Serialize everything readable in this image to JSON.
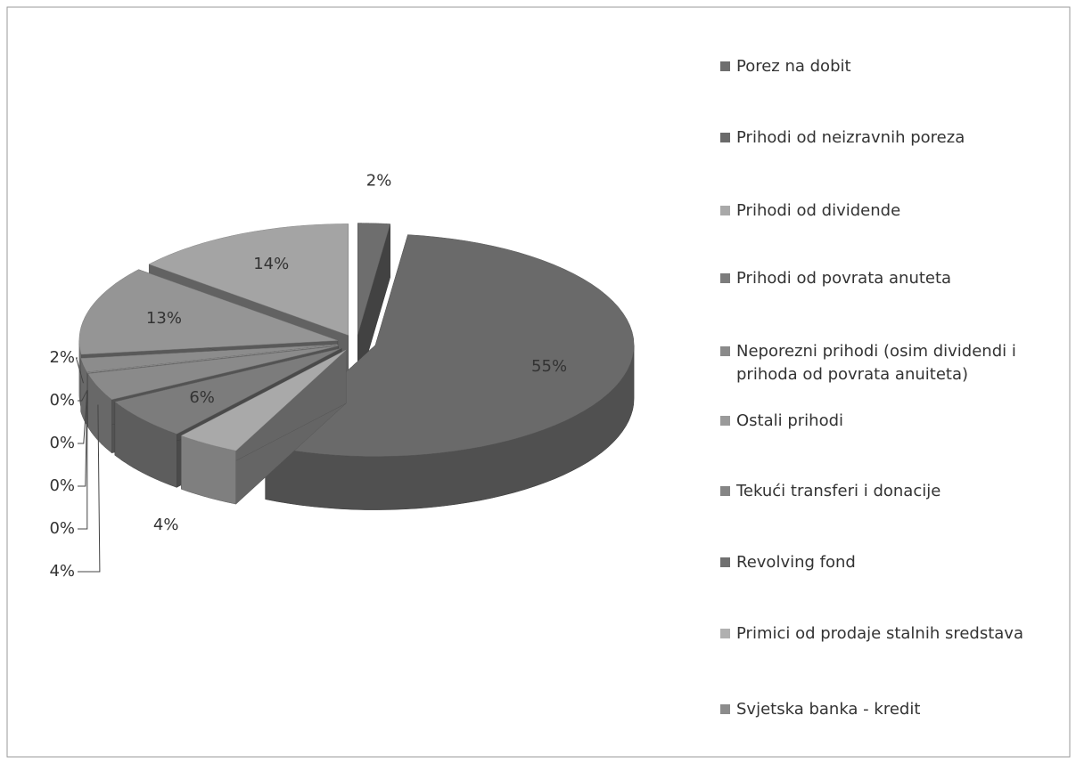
{
  "chart_data": {
    "type": "pie3d",
    "categories": [
      "Porez na dobit",
      "Prihodi od neizravnih poreza",
      "Prihodi od dividende",
      "Prihodi od povrata anuteta",
      "Neporezni prihodi (osim dividendi i prihoda od povrata anuiteta)",
      "Ostali prihodi",
      "Tekući transferi i donacije",
      "Revolving fond",
      "Primici od prodaje stalnih sredstava",
      "Svjetska banka - kredit",
      null,
      null
    ],
    "values": [
      2,
      55,
      4,
      6,
      4,
      0,
      0,
      0,
      0,
      2,
      13,
      14
    ],
    "value_labels": [
      "2%",
      "55%",
      "4%",
      "6%",
      "4%",
      "0%",
      "0%",
      "0%",
      "0%",
      "2%",
      "13%",
      "14%"
    ],
    "colors": [
      "#6e6e6e",
      "#6a6a6a",
      "#a9a9a9",
      "#7c7c7c",
      "#8a8a8a",
      "#9a9a9a",
      "#858585",
      "#707070",
      "#b0b0b0",
      "#8c8c8c",
      "#959595",
      "#a4a4a4"
    ],
    "legend": "right"
  }
}
